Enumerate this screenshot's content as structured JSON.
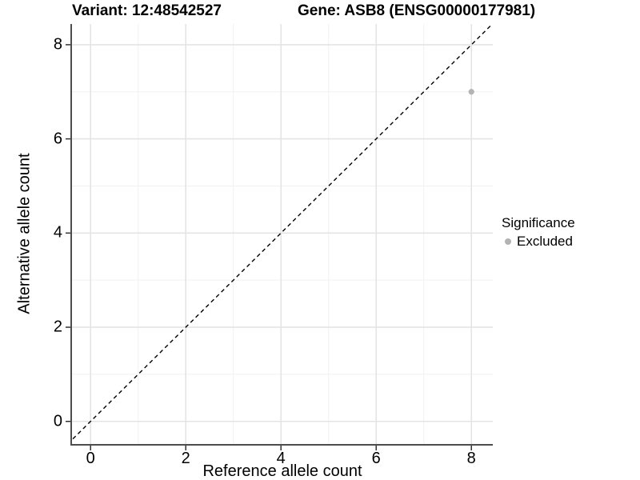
{
  "title": {
    "variant": "Variant: 12:48542527",
    "gene": "Gene: ASB8 (ENSG00000177981)"
  },
  "axes": {
    "x_label": "Reference allele count",
    "y_label": "Alternative allele count",
    "x_ticks": [
      0,
      2,
      4,
      6,
      8
    ],
    "y_ticks": [
      0,
      2,
      4,
      6,
      8
    ],
    "x_minor_ticks": [
      1,
      3,
      5,
      7
    ],
    "y_minor_ticks": [
      1,
      3,
      5,
      7
    ]
  },
  "legend": {
    "title": "Significance",
    "items": [
      {
        "label": "Excluded",
        "color": "#b3b3b3"
      }
    ]
  },
  "chart_data": {
    "type": "scatter",
    "title": "Variant: 12:48542527   Gene: ASB8 (ENSG00000177981)",
    "xlabel": "Reference allele count",
    "ylabel": "Alternative allele count",
    "xlim": [
      -0.39,
      8.45
    ],
    "ylim": [
      -0.48,
      8.44
    ],
    "x_ticks": [
      0,
      2,
      4,
      6,
      8
    ],
    "y_ticks": [
      0,
      2,
      4,
      6,
      8
    ],
    "grid": "major+minor",
    "legend_position": "right-center",
    "series": [
      {
        "name": "Excluded",
        "color": "#b3b3b3",
        "points": [
          [
            8,
            7
          ]
        ]
      }
    ],
    "reference_line": {
      "equation": "y = x",
      "style": "dashed",
      "color": "#000000"
    }
  },
  "colors": {
    "background": "#ffffff",
    "grid_major": "#e4e4e4",
    "grid_minor": "#f1f1f1",
    "axis_line": "#4d4d4d",
    "tick_mark": "#333333",
    "point": "#b3b3b3",
    "dashed_line": "#000000",
    "text": "#000000"
  }
}
